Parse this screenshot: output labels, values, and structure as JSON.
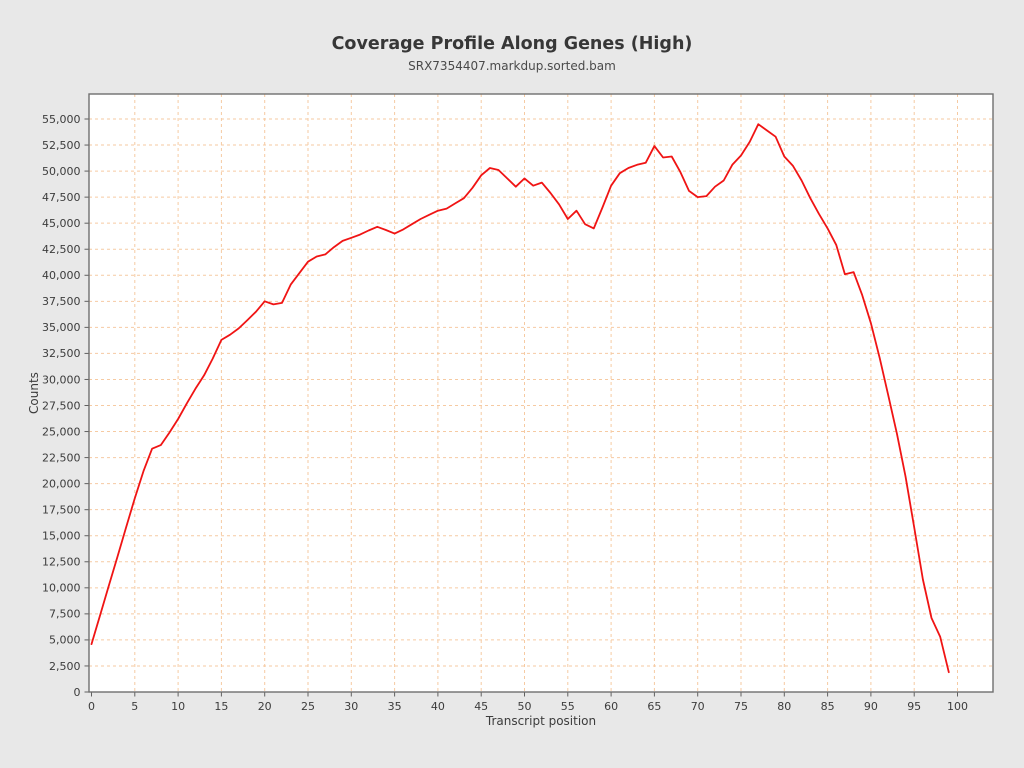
{
  "page": {
    "background": "#e8e8e8"
  },
  "chart": {
    "title": "Coverage Profile Along Genes (High)",
    "subtitle": "SRX7354407.markdup.sorted.bam",
    "xlabel": "Transcript position",
    "ylabel": "Counts"
  },
  "chart_data": {
    "type": "line",
    "title": "Coverage Profile Along Genes (High)",
    "subtitle": "SRX7354407.markdup.sorted.bam",
    "xlabel": "Transcript position",
    "ylabel": "Counts",
    "legend_position": "none",
    "grid": true,
    "grid_color": "#f6caa2",
    "line_color": "#f01414",
    "plot_background": "#ffffff",
    "border_color": "#6f6f6f",
    "xlim": [
      -0.3,
      104.3
    ],
    "ylim": [
      0,
      57400
    ],
    "x_tick_step": 5,
    "y_tick_step": 2500,
    "y_tick_max": 55000,
    "x": [
      0,
      1,
      2,
      3,
      4,
      5,
      6,
      7,
      8,
      9,
      10,
      11,
      12,
      13,
      14,
      15,
      16,
      17,
      18,
      19,
      20,
      21,
      22,
      23,
      24,
      25,
      26,
      27,
      28,
      29,
      30,
      31,
      32,
      33,
      34,
      35,
      36,
      37,
      38,
      39,
      40,
      41,
      42,
      43,
      44,
      45,
      46,
      47,
      48,
      49,
      50,
      51,
      52,
      53,
      54,
      55,
      56,
      57,
      58,
      59,
      60,
      61,
      62,
      63,
      64,
      65,
      66,
      67,
      68,
      69,
      70,
      71,
      72,
      73,
      74,
      75,
      76,
      77,
      78,
      79,
      80,
      81,
      82,
      83,
      84,
      85,
      86,
      87,
      88,
      89,
      90,
      91,
      92,
      93,
      94,
      95,
      96,
      97,
      98,
      99
    ],
    "y": [
      4600,
      7400,
      10200,
      13000,
      15800,
      18600,
      21200,
      23350,
      23700,
      24900,
      26200,
      27700,
      29100,
      30400,
      32000,
      33800,
      34300,
      34900,
      35700,
      36500,
      37500,
      37200,
      37350,
      39100,
      40200,
      41300,
      41800,
      42000,
      42700,
      43300,
      43600,
      43900,
      44300,
      44650,
      44350,
      44000,
      44400,
      44900,
      45400,
      45800,
      46200,
      46400,
      46900,
      47400,
      48400,
      49600,
      50300,
      50100,
      49300,
      48500,
      49300,
      48600,
      48900,
      47900,
      46800,
      45400,
      46200,
      44900,
      44500,
      46500,
      48600,
      49800,
      50300,
      50600,
      50800,
      52400,
      51300,
      51400,
      49900,
      48100,
      47500,
      47600,
      48500,
      49100,
      50600,
      51500,
      52800,
      54500,
      53900,
      53300,
      51400,
      50500,
      49100,
      47400,
      45900,
      44500,
      42900,
      40100,
      40300,
      38100,
      35400,
      32100,
      28500,
      24800,
      20700,
      15800,
      10800,
      7100,
      5300,
      1900
    ]
  }
}
